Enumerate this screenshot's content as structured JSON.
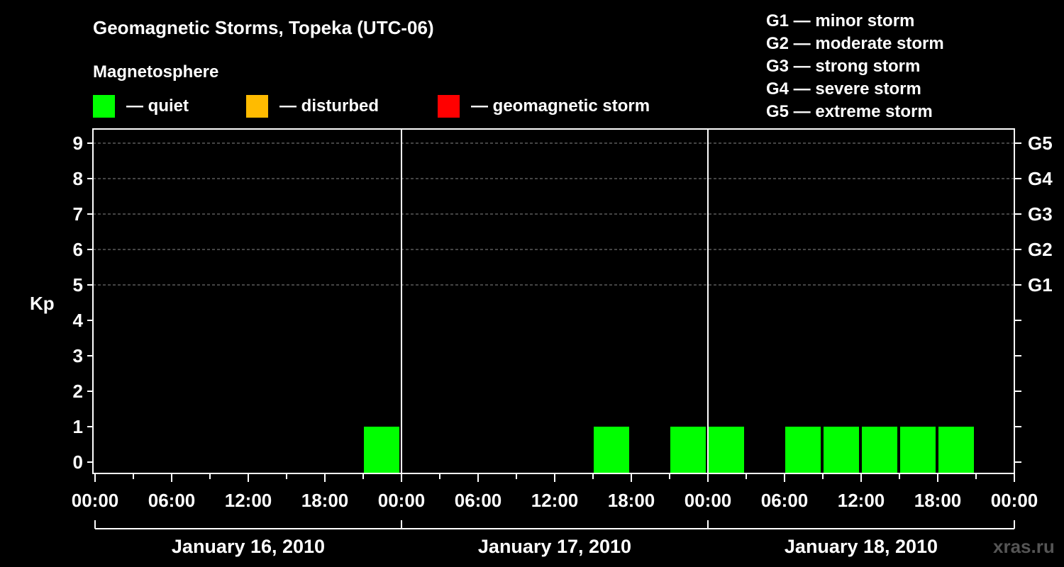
{
  "colors": {
    "background": "#000000",
    "axis": "#ffffff",
    "grid": "#888888",
    "quiet": "#00ff00",
    "disturbed": "#ffbb00",
    "storm": "#ff0000"
  },
  "title": "Geomagnetic Storms, Topeka (UTC-06)",
  "legend": {
    "heading": "Magnetosphere",
    "items": [
      {
        "label": "— quiet",
        "color": "#00ff00"
      },
      {
        "label": "— disturbed",
        "color": "#ffbb00"
      },
      {
        "label": "— geomagnetic storm",
        "color": "#ff0000"
      }
    ]
  },
  "scale_legend": [
    "G1 — minor storm",
    "G2 — moderate storm",
    "G3 — strong storm",
    "G4 — severe storm",
    "G5 — extreme storm"
  ],
  "watermark": "xras.ru",
  "chart_data": {
    "type": "bar",
    "title": "Geomagnetic Storms, Topeka (UTC-06)",
    "ylabel": "Kp",
    "ylim": [
      0,
      9
    ],
    "y_ticks": [
      "0",
      "1",
      "2",
      "3",
      "4",
      "5",
      "6",
      "7",
      "8",
      "9"
    ],
    "right_axis_ticks": [
      {
        "kp": 5,
        "label": "G1"
      },
      {
        "kp": 6,
        "label": "G2"
      },
      {
        "kp": 7,
        "label": "G3"
      },
      {
        "kp": 8,
        "label": "G4"
      },
      {
        "kp": 9,
        "label": "G5"
      }
    ],
    "x_unit": "hours from 2010-01-16 00:00 local",
    "xlim_hours": [
      0,
      72
    ],
    "x_tick_labels": [
      "00:00",
      "06:00",
      "12:00",
      "18:00",
      "00:00",
      "06:00",
      "12:00",
      "18:00",
      "00:00",
      "06:00",
      "12:00",
      "18:00",
      "00:00"
    ],
    "days": [
      "January 16, 2010",
      "January 17, 2010",
      "January 18, 2010"
    ],
    "bar_width_hours": 3,
    "grid": "horizontal dashed at Kp 5–9",
    "series": [
      {
        "name": "Kp",
        "points": [
          {
            "start_hour": 21,
            "kp": 1,
            "level": "quiet"
          },
          {
            "start_hour": 39,
            "kp": 1,
            "level": "quiet"
          },
          {
            "start_hour": 45,
            "kp": 1,
            "level": "quiet"
          },
          {
            "start_hour": 48,
            "kp": 1,
            "level": "quiet"
          },
          {
            "start_hour": 54,
            "kp": 1,
            "level": "quiet"
          },
          {
            "start_hour": 57,
            "kp": 1,
            "level": "quiet"
          },
          {
            "start_hour": 60,
            "kp": 1,
            "level": "quiet"
          },
          {
            "start_hour": 63,
            "kp": 1,
            "level": "quiet"
          },
          {
            "start_hour": 66,
            "kp": 1,
            "level": "quiet"
          }
        ]
      }
    ]
  }
}
